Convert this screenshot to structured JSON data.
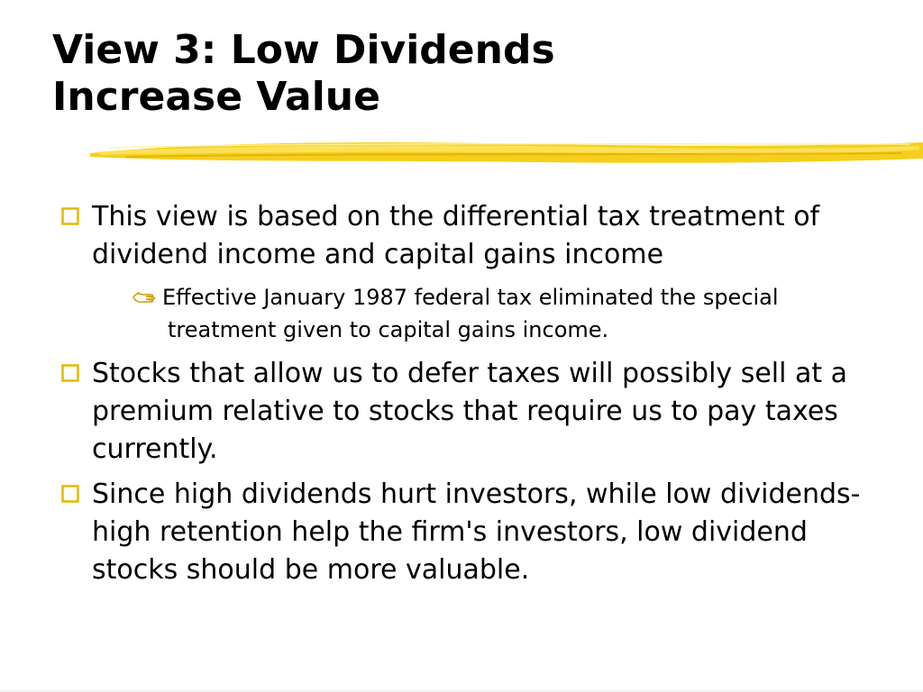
{
  "slide": {
    "title_line1": "View 3: Low Dividends",
    "title_line2": "Increase Value",
    "accent_color": "#f2c200",
    "bullets": [
      {
        "text": "This view is based on the differential tax treatment of dividend income and capital gains income",
        "marker_icon": "hollow-square-icon",
        "sub_bullets": [
          {
            "text": "Effective January 1987 federal tax eliminated the special treatment given to capital gains income.",
            "marker_icon": "hand-pointer-icon"
          }
        ]
      },
      {
        "text": "Stocks that allow us to defer taxes will possibly sell at a premium relative to stocks that require us to pay taxes currently.",
        "marker_icon": "hollow-square-icon"
      },
      {
        "text": "Since high dividends hurt investors, while low dividends-high retention help the firm's investors, low dividend stocks should be more valuable.",
        "marker_icon": "hollow-square-icon"
      }
    ]
  }
}
